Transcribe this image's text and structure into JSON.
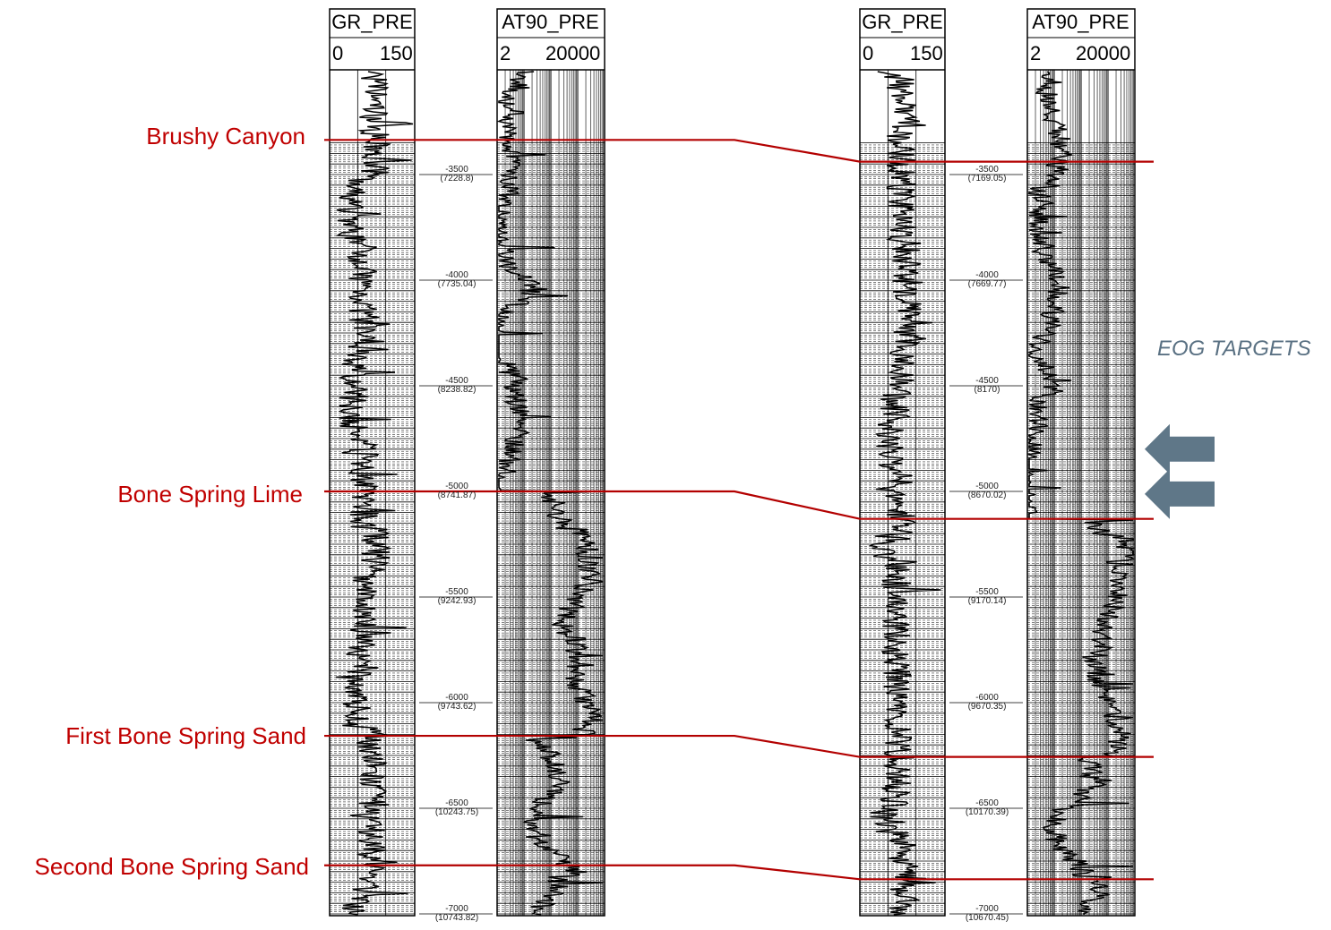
{
  "formations": [
    {
      "name": "Brushy Canyon",
      "left_depth": 3336,
      "right_depth": 3439
    },
    {
      "name": "Bone Spring Lime",
      "left_depth": 5000,
      "right_depth": 5130
    },
    {
      "name": "First Bone Spring Sand",
      "left_depth": 6157,
      "right_depth": 6257
    },
    {
      "name": "Second Bone Spring Sand",
      "left_depth": 6770,
      "right_depth": 6836
    }
  ],
  "wells": [
    {
      "id": "left-well",
      "tracks": [
        {
          "name": "GR_PRE",
          "scale_min": "0",
          "scale_max": "150",
          "scale": "linear"
        },
        {
          "name": "AT90_PRE",
          "scale_min": "2",
          "scale_max": "20000",
          "scale": "log"
        }
      ],
      "depth_markers": [
        {
          "ssd": "-3500",
          "md": "(7228.8)"
        },
        {
          "ssd": "-4000",
          "md": "(7735.04)"
        },
        {
          "ssd": "-4500",
          "md": "(8238.82)"
        },
        {
          "ssd": "-5000",
          "md": "(8741.87)"
        },
        {
          "ssd": "-5500",
          "md": "(9242.93)"
        },
        {
          "ssd": "-6000",
          "md": "(9743.62)"
        },
        {
          "ssd": "-6500",
          "md": "(10243.75)"
        },
        {
          "ssd": "-7000",
          "md": "(10743.82)"
        }
      ]
    },
    {
      "id": "right-well",
      "tracks": [
        {
          "name": "GR_PRE",
          "scale_min": "0",
          "scale_max": "150",
          "scale": "linear"
        },
        {
          "name": "AT90_PRE",
          "scale_min": "2",
          "scale_max": "20000",
          "scale": "log"
        }
      ],
      "depth_markers": [
        {
          "ssd": "-3500",
          "md": "(7169.05)"
        },
        {
          "ssd": "-4000",
          "md": "(7669.77)"
        },
        {
          "ssd": "-4500",
          "md": "(8170)"
        },
        {
          "ssd": "-5000",
          "md": "(8670.02)"
        },
        {
          "ssd": "-5500",
          "md": "(9170.14)"
        },
        {
          "ssd": "-6000",
          "md": "(9670.35)"
        },
        {
          "ssd": "-6500",
          "md": "(10170.39)"
        },
        {
          "ssd": "-7000",
          "md": "(10670.45)"
        }
      ]
    }
  ],
  "eog": {
    "title": "EOG TARGETS",
    "arrow_color": "#5f7788",
    "target_depths": [
      4800,
      5012
    ]
  },
  "colors": {
    "formation_line": "#b30000",
    "formation_text": "#c00000",
    "log_curve": "#000000"
  }
}
